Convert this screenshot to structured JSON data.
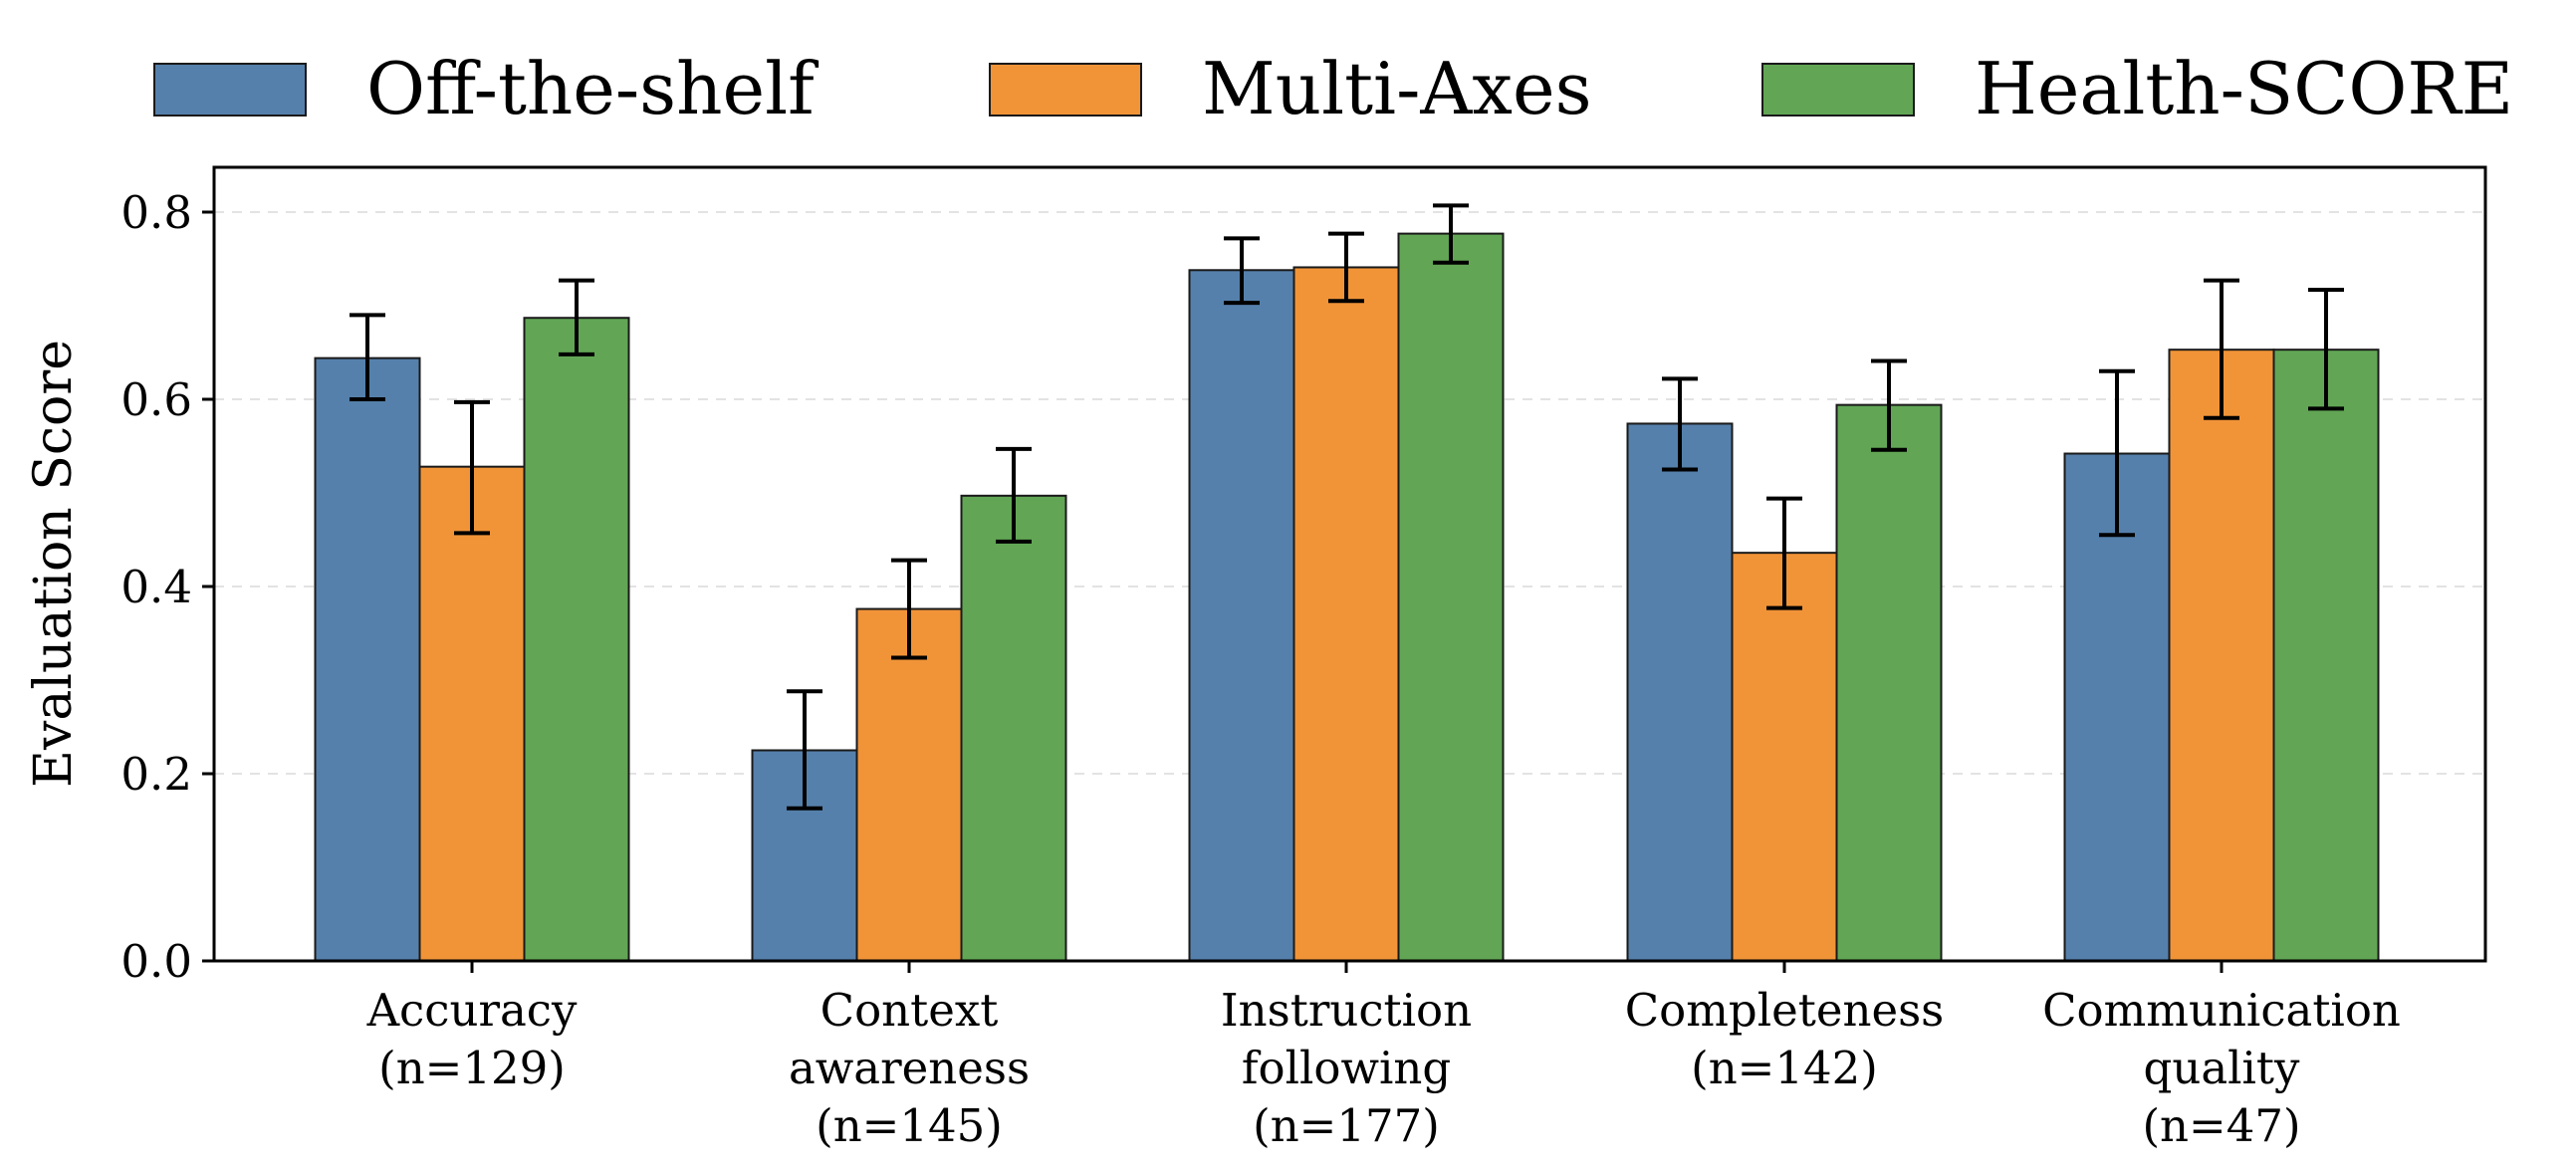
{
  "chart_data": {
    "type": "bar",
    "title": "",
    "xlabel": "",
    "ylabel": "Evaluation Score",
    "ylim": [
      0,
      0.85
    ],
    "yticks": [
      0.0,
      0.2,
      0.4,
      0.6,
      0.8
    ],
    "ytick_labels": [
      "0.0",
      "0.2",
      "0.4",
      "0.6",
      "0.8"
    ],
    "grid": "horizontal dashed",
    "legend_position": "top",
    "categories": [
      [
        "Accuracy",
        "(n=129)"
      ],
      [
        "Context",
        "awareness",
        "(n=145)"
      ],
      [
        "Instruction",
        "following",
        "(n=177)"
      ],
      [
        "Completeness",
        "(n=142)"
      ],
      [
        "Communication",
        "quality",
        "(n=47)"
      ]
    ],
    "series": [
      {
        "name": "Off-the-shelf",
        "color": "#5580ab",
        "values": [
          0.644,
          0.225,
          0.738,
          0.574,
          0.542
        ],
        "err_low": [
          0.6,
          0.163,
          0.703,
          0.525,
          0.455
        ],
        "err_high": [
          0.69,
          0.288,
          0.772,
          0.622,
          0.63
        ]
      },
      {
        "name": "Multi-Axes",
        "color": "#f19438",
        "values": [
          0.528,
          0.376,
          0.741,
          0.436,
          0.653
        ],
        "err_low": [
          0.457,
          0.324,
          0.705,
          0.377,
          0.58
        ],
        "err_high": [
          0.597,
          0.428,
          0.777,
          0.494,
          0.727
        ]
      },
      {
        "name": "Health-SCORE",
        "color": "#62a655",
        "values": [
          0.687,
          0.497,
          0.777,
          0.594,
          0.653
        ],
        "err_low": [
          0.648,
          0.448,
          0.746,
          0.546,
          0.59
        ],
        "err_high": [
          0.727,
          0.547,
          0.807,
          0.641,
          0.717
        ]
      }
    ]
  }
}
